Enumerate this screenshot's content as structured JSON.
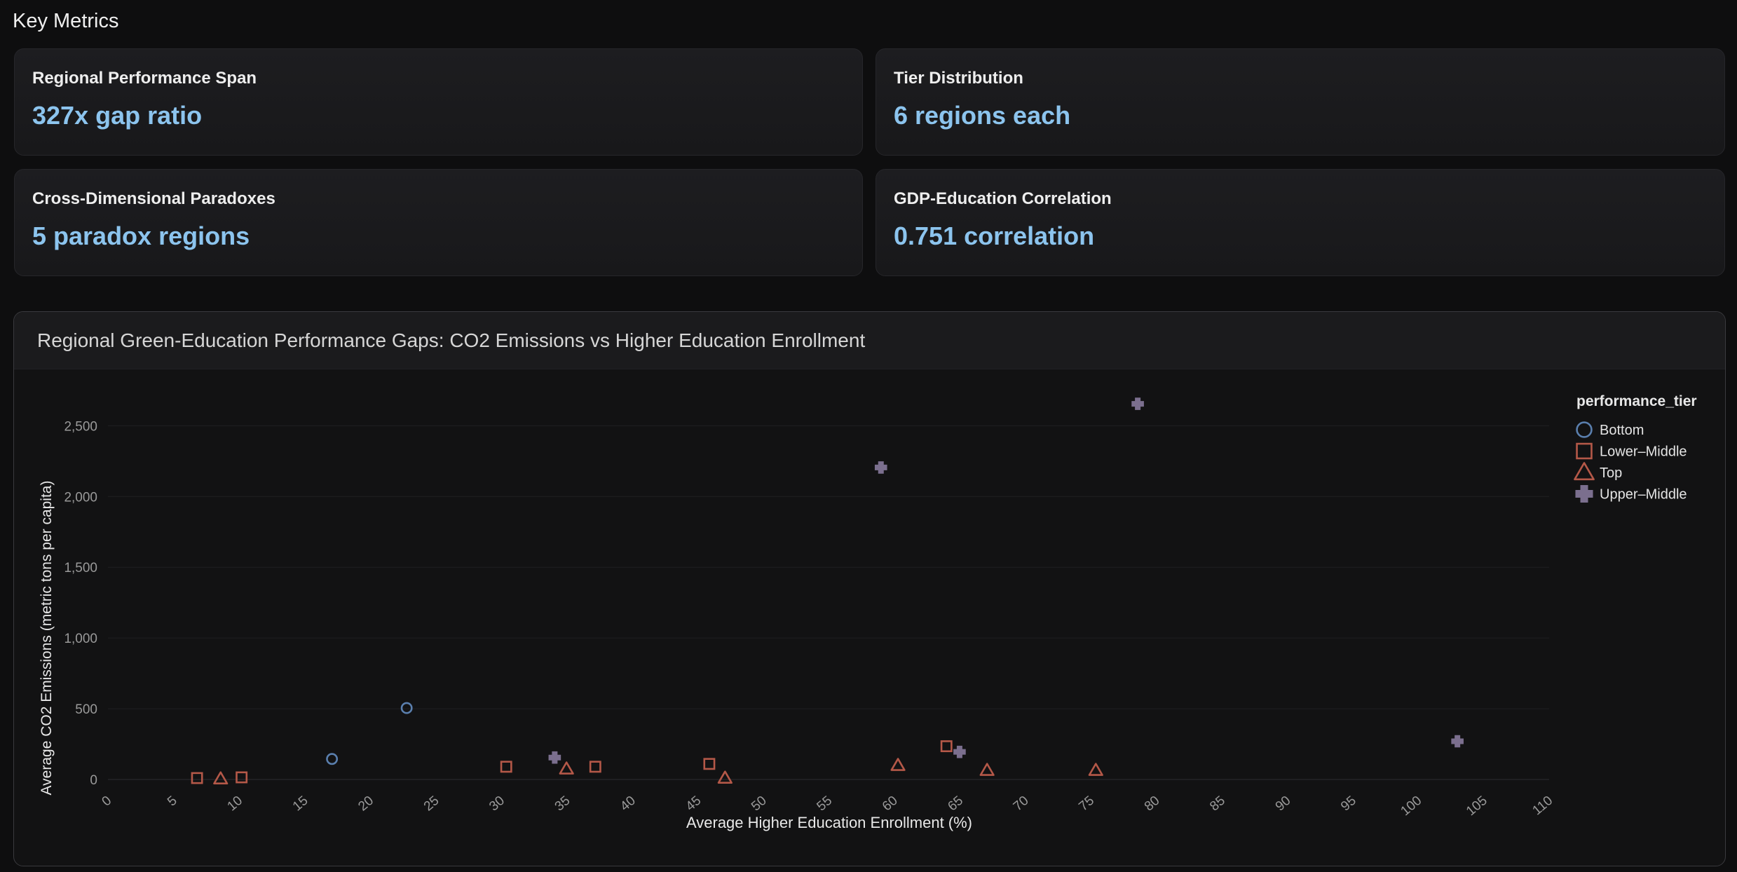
{
  "section": {
    "title": "Key Metrics"
  },
  "cards": [
    {
      "label": "Regional Performance Span",
      "value": "327x gap ratio"
    },
    {
      "label": "Tier Distribution",
      "value": "6 regions each"
    },
    {
      "label": "Cross-Dimensional Paradoxes",
      "value": "5 paradox regions"
    },
    {
      "label": "GDP-Education Correlation",
      "value": "0.751 correlation"
    }
  ],
  "chart_data": {
    "type": "scatter",
    "title": "Regional Green-Education Performance Gaps: CO2 Emissions vs Higher Education Enrollment",
    "xlabel": "Average Higher Education Enrollment (%)",
    "ylabel": "Average CO2 Emissions (metric tons per capita)",
    "xlim": [
      0,
      110
    ],
    "ylim": [
      0,
      2700
    ],
    "x_ticks": [
      0,
      5,
      10,
      15,
      20,
      25,
      30,
      35,
      40,
      45,
      50,
      55,
      60,
      65,
      70,
      75,
      80,
      85,
      90,
      95,
      100,
      105,
      110
    ],
    "x_tick_labels": [
      "0",
      "5",
      "10",
      "15",
      "20",
      "25",
      "30",
      "35",
      "40",
      "45",
      "50",
      "55",
      "60",
      "65",
      "70",
      "75",
      "80",
      "85",
      "90",
      "95",
      "100",
      "105",
      "110"
    ],
    "y_ticks": [
      0,
      500,
      1000,
      1500,
      2000,
      2500
    ],
    "y_tick_labels": [
      "0",
      "500",
      "1,000",
      "1,500",
      "2,000",
      "2,500"
    ],
    "grid": "horizontal",
    "legend": {
      "title": "performance_tier",
      "placement": "right"
    },
    "series": [
      {
        "name": "Bottom",
        "marker": "circle",
        "color": "#5a7fae",
        "points": [
          {
            "x": 17.1,
            "y": 145
          },
          {
            "x": 22.8,
            "y": 505
          }
        ]
      },
      {
        "name": "Lower–Middle",
        "marker": "square",
        "color": "#b45848",
        "points": [
          {
            "x": 6.8,
            "y": 10
          },
          {
            "x": 10.2,
            "y": 15
          },
          {
            "x": 30.4,
            "y": 90
          },
          {
            "x": 37.2,
            "y": 90
          },
          {
            "x": 45.9,
            "y": 110
          },
          {
            "x": 64.0,
            "y": 235
          }
        ]
      },
      {
        "name": "Top",
        "marker": "triangle",
        "color": "#b45848",
        "points": [
          {
            "x": 8.6,
            "y": 5
          },
          {
            "x": 35.0,
            "y": 75
          },
          {
            "x": 47.1,
            "y": 10
          },
          {
            "x": 60.3,
            "y": 100
          },
          {
            "x": 67.1,
            "y": 65
          },
          {
            "x": 75.4,
            "y": 65
          }
        ]
      },
      {
        "name": "Upper–Middle",
        "marker": "plus",
        "color": "#7b6f8e",
        "points": [
          {
            "x": 34.1,
            "y": 155
          },
          {
            "x": 59.0,
            "y": 2205
          },
          {
            "x": 65.0,
            "y": 195
          },
          {
            "x": 78.6,
            "y": 2655
          },
          {
            "x": 103.0,
            "y": 270
          }
        ]
      }
    ]
  }
}
